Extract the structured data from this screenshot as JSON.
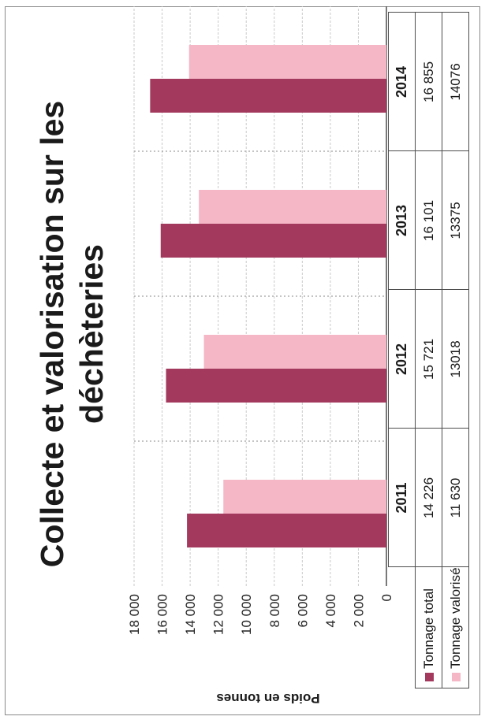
{
  "chart_data": {
    "type": "bar",
    "title_line1": "Collecte et valorisation sur les",
    "title_line2": "déchèteries",
    "ylabel": "Poids en tonnes",
    "ylim": [
      0,
      18000
    ],
    "yticks": [
      "18 000",
      "16 000",
      "14 000",
      "12 000",
      "10 000",
      "8 000",
      "6 000",
      "4 000",
      "2 000",
      "0"
    ],
    "ytick_values": [
      18000,
      16000,
      14000,
      12000,
      10000,
      8000,
      6000,
      4000,
      2000,
      0
    ],
    "categories": [
      "2011",
      "2012",
      "2013",
      "2014"
    ],
    "series": [
      {
        "name": "Tonnage total",
        "color": "#a33a5e",
        "values": [
          14226,
          15721,
          16101,
          16855
        ],
        "labels": [
          "14 226",
          "15 721",
          "16 101",
          "16 855"
        ]
      },
      {
        "name": "Tonnage valorisé",
        "color": "#f5b6c6",
        "values": [
          11630,
          13018,
          13375,
          14076
        ],
        "labels": [
          "11 630",
          "13018",
          "13375",
          "14076"
        ]
      }
    ],
    "grid": true,
    "legend": "data-table"
  }
}
